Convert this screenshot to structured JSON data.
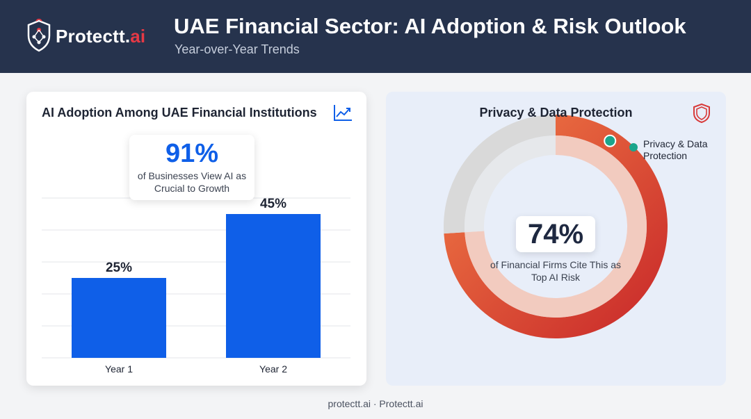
{
  "header": {
    "logo_prefix": "Protectt.",
    "logo_suffix": "ai",
    "title": "UAE Financial Sector: AI Adoption & Risk Outlook",
    "subtitle": "Year-over-Year Trends"
  },
  "left_card": {
    "title": "AI Adoption Among UAE Financial Institutions",
    "icon": "trend-up-icon",
    "callout_value": "91%",
    "callout_text": "of Businesses View AI as Crucial to Growth"
  },
  "right_card": {
    "title": "Privacy & Data Protection",
    "icon": "shield-icon",
    "center_value": "74%",
    "center_text": "of Financial Firms Cite This as Top AI Risk",
    "legend_label": "Privacy & Data Protection"
  },
  "footer": {
    "text": "protectt.ai · Protectt.ai"
  },
  "colors": {
    "header_bg": "#26334d",
    "bar": "#0f5fe8",
    "donut_start": "#f07a45",
    "donut_end": "#c92a2a",
    "donut_rest": "#d9d9d9",
    "legend_dot": "#1aa58c",
    "brand_accent": "#e53945"
  },
  "chart_data": [
    {
      "type": "bar",
      "title": "AI Adoption Among UAE Financial Institutions",
      "categories": [
        "Year 1",
        "Year 2"
      ],
      "values": [
        25,
        45
      ],
      "value_labels": [
        "25%",
        "45%"
      ],
      "ylim": [
        0,
        50
      ],
      "grid": true,
      "annotation": "91% of Businesses View AI as Crucial to Growth"
    },
    {
      "type": "pie",
      "title": "Privacy & Data Protection",
      "series": [
        {
          "name": "Privacy & Data Protection",
          "value": 74
        },
        {
          "value": 26
        }
      ],
      "center_label": "74%",
      "center_text": "of Financial Firms Cite This as Top AI Risk",
      "legend_position": "top-right"
    }
  ]
}
